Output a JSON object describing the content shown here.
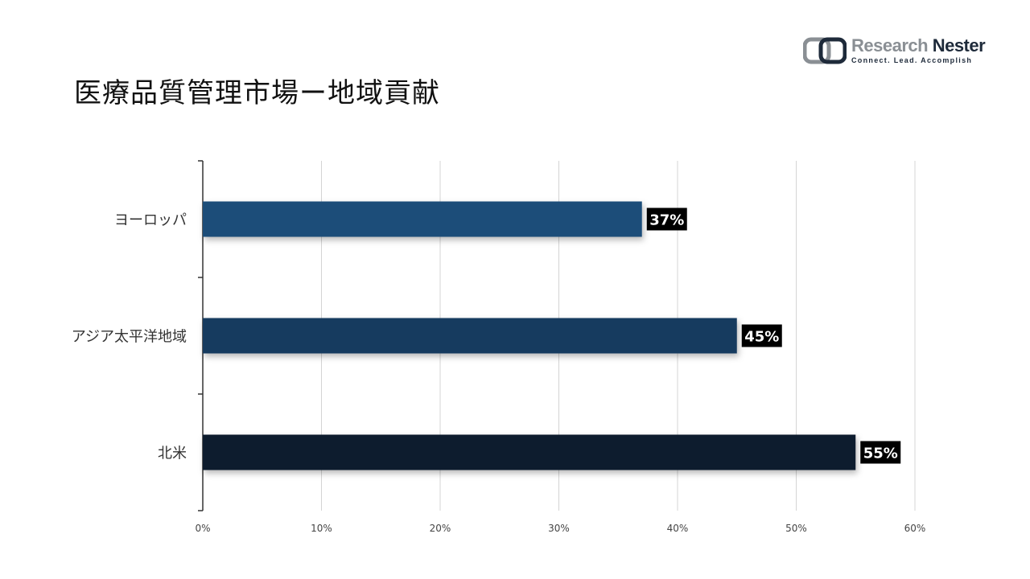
{
  "title": "医療品質管理市場ー地域貢献",
  "logo": {
    "brand_left": "Research",
    "brand_right": "Nester",
    "tagline": "Connect. Lead. Accomplish"
  },
  "chart_data": {
    "type": "bar",
    "orientation": "horizontal",
    "categories": [
      "ヨーロッパ",
      "アジア太平洋地域",
      "北米"
    ],
    "values": [
      37,
      45,
      55
    ],
    "data_labels": [
      "37%",
      "45%",
      "55%"
    ],
    "colors": [
      "#1f4e79",
      "#173a5e",
      "#0f1d2d"
    ],
    "xlim": [
      0,
      60
    ],
    "x_ticks": [
      0,
      10,
      20,
      30,
      40,
      50,
      60
    ],
    "x_tick_labels": [
      "0%",
      "10%",
      "20%",
      "30%",
      "40%",
      "50%",
      "60%"
    ],
    "grid": "vertical",
    "legend": "none"
  }
}
